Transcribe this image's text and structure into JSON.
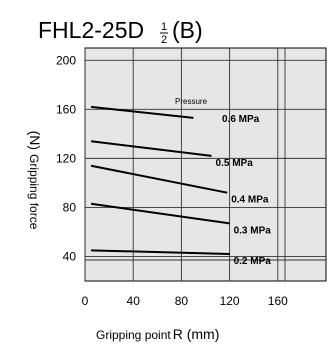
{
  "chart_data": {
    "type": "line",
    "title": {
      "main": "FHL2-25D",
      "frac_top": "1",
      "frac_bottom": "2",
      "suffix": "(B)"
    },
    "xlabel": "Gripping point",
    "xlabel_unit": "R (mm)",
    "ylabel": "Gripping force",
    "ylabel_unit": "(N)",
    "xlim": [
      0,
      200
    ],
    "ylim": [
      20,
      210
    ],
    "xticks": [
      0,
      40,
      80,
      120,
      160
    ],
    "xtick_labels": [
      "0",
      "40",
      "80",
      "120",
      "160"
    ],
    "yticks": [
      40,
      80,
      120,
      160,
      200
    ],
    "ytick_labels": [
      "40",
      "80",
      "120",
      "160",
      "200"
    ],
    "grid": true,
    "annotation": "Pressure",
    "series": [
      {
        "name": "0.6 MPa",
        "x": [
          5,
          90
        ],
        "y": [
          162,
          153
        ]
      },
      {
        "name": "0.5 MPa",
        "x": [
          5,
          105
        ],
        "y": [
          134,
          122
        ]
      },
      {
        "name": "0.4 MPa",
        "x": [
          5,
          118
        ],
        "y": [
          114,
          92
        ]
      },
      {
        "name": "0.3 MPa",
        "x": [
          5,
          120
        ],
        "y": [
          83,
          67
        ]
      },
      {
        "name": "0.2 MPa",
        "x": [
          5,
          120
        ],
        "y": [
          45,
          42
        ]
      }
    ]
  }
}
